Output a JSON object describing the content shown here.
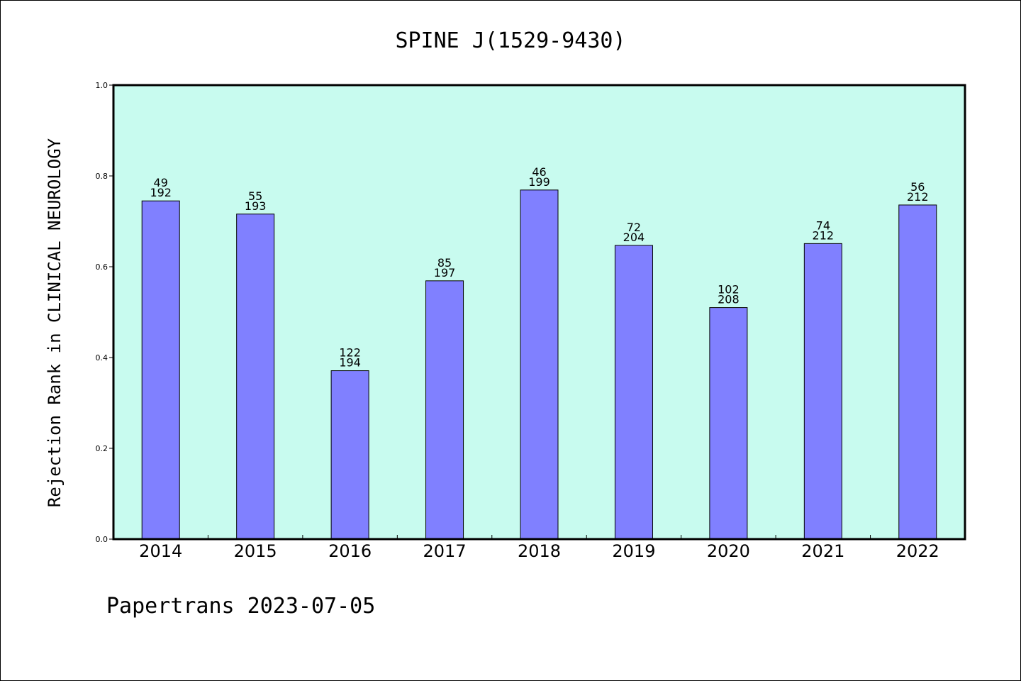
{
  "footer": "Papertrans 2023-07-05",
  "colors": {
    "plot_background": "#c8fbef",
    "bar_fill": "#8080ff",
    "bar_stroke": "#000000"
  },
  "chart_data": {
    "type": "bar",
    "title": "SPINE J(1529-9430)",
    "xlabel": "",
    "ylabel": "Rejection Rank in CLINICAL NEUROLOGY",
    "ylim": [
      0,
      1.0
    ],
    "yticks": [
      "0.0",
      "0.2",
      "0.4",
      "0.6",
      "0.8",
      "1.0"
    ],
    "grid": false,
    "categories": [
      "2014",
      "2015",
      "2016",
      "2017",
      "2018",
      "2019",
      "2020",
      "2021",
      "2022"
    ],
    "values": [
      0.745,
      0.716,
      0.371,
      0.569,
      0.769,
      0.647,
      0.51,
      0.651,
      0.736
    ],
    "label_top": [
      "49",
      "55",
      "122",
      "85",
      "46",
      "72",
      "102",
      "74",
      "56"
    ],
    "label_bottom": [
      "192",
      "193",
      "194",
      "197",
      "199",
      "204",
      "208",
      "212",
      "212"
    ]
  }
}
